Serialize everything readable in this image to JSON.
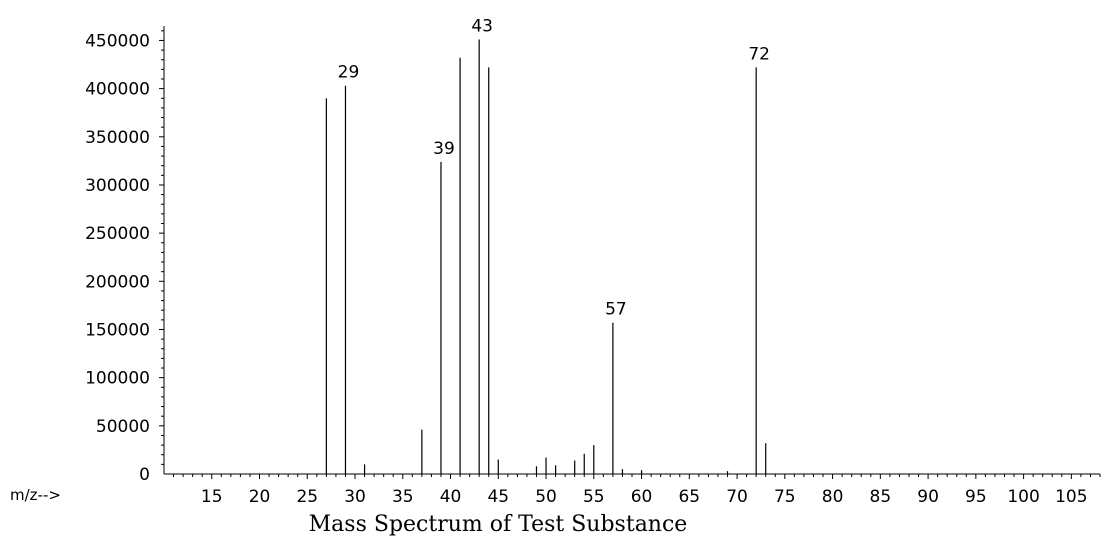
{
  "chart_data": {
    "type": "bar",
    "caption": "Mass Spectrum of Test Substance",
    "x_axis_prefix": "m/z-->",
    "xlim": [
      10,
      108
    ],
    "ylim": [
      0,
      465000
    ],
    "x_ticks": [
      15,
      20,
      25,
      30,
      35,
      40,
      45,
      50,
      55,
      60,
      65,
      70,
      75,
      80,
      85,
      90,
      95,
      100,
      105
    ],
    "y_ticks": [
      0,
      50000,
      100000,
      150000,
      200000,
      250000,
      300000,
      350000,
      400000,
      450000
    ],
    "grid": false,
    "peaks": [
      {
        "mz": 27,
        "abundance": 390000
      },
      {
        "mz": 29,
        "abundance": 403000
      },
      {
        "mz": 31,
        "abundance": 10000
      },
      {
        "mz": 37,
        "abundance": 46000
      },
      {
        "mz": 39,
        "abundance": 324000
      },
      {
        "mz": 41,
        "abundance": 432000
      },
      {
        "mz": 43,
        "abundance": 451000
      },
      {
        "mz": 44,
        "abundance": 422000
      },
      {
        "mz": 45,
        "abundance": 15000
      },
      {
        "mz": 49,
        "abundance": 8000
      },
      {
        "mz": 50,
        "abundance": 17000
      },
      {
        "mz": 51,
        "abundance": 9000
      },
      {
        "mz": 53,
        "abundance": 14000
      },
      {
        "mz": 54,
        "abundance": 21000
      },
      {
        "mz": 55,
        "abundance": 30000
      },
      {
        "mz": 57,
        "abundance": 157000
      },
      {
        "mz": 58,
        "abundance": 5000
      },
      {
        "mz": 60,
        "abundance": 4000
      },
      {
        "mz": 69,
        "abundance": 3000
      },
      {
        "mz": 72,
        "abundance": 422000
      },
      {
        "mz": 73,
        "abundance": 32000
      }
    ],
    "peak_labels": [
      {
        "mz": 29,
        "text": "29"
      },
      {
        "mz": 39,
        "text": "39"
      },
      {
        "mz": 43,
        "text": "43"
      },
      {
        "mz": 57,
        "text": "57"
      },
      {
        "mz": 72,
        "text": "72"
      }
    ]
  }
}
